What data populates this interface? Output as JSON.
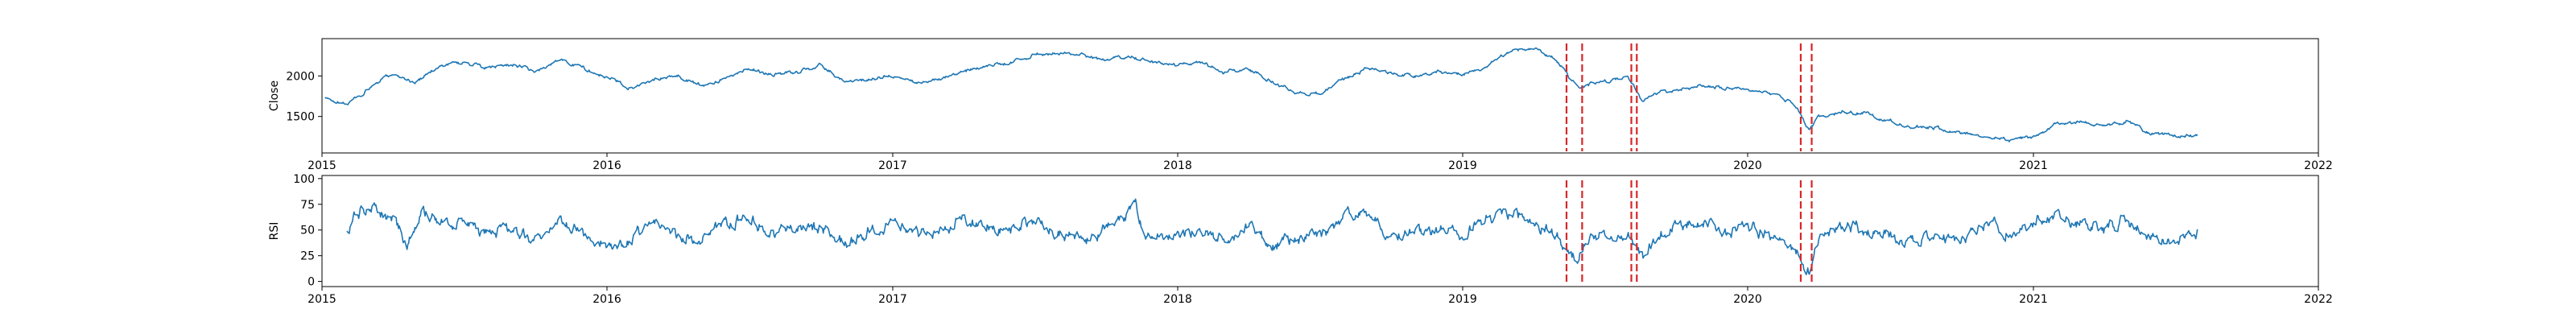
{
  "colors": {
    "line": "#1f77b4",
    "event_line": "#d62728",
    "axes": "#000000"
  },
  "chart_data": [
    {
      "type": "line",
      "ylabel": "Close",
      "xlim": [
        "2015-01-01",
        "2022-01-01"
      ],
      "ylim": [
        1050,
        2460
      ],
      "x_tick_labels": [
        "2015",
        "2016",
        "2017",
        "2018",
        "2019",
        "2020",
        "2021",
        "2022"
      ],
      "y_ticks": [
        1500,
        2000
      ],
      "y_tick_labels": [
        "1500",
        "2000"
      ],
      "grid": false,
      "x_range": [
        "2015-01-05",
        "2021-07-30"
      ],
      "anchors": [
        [
          "2015-01-05",
          1720
        ],
        [
          "2015-02-01",
          1650
        ],
        [
          "2015-03-01",
          1830
        ],
        [
          "2015-04-01",
          2030
        ],
        [
          "2015-05-01",
          1920
        ],
        [
          "2015-06-01",
          2130
        ],
        [
          "2015-07-01",
          2170
        ],
        [
          "2015-08-01",
          2090
        ],
        [
          "2015-09-01",
          2150
        ],
        [
          "2015-10-01",
          2040
        ],
        [
          "2015-11-01",
          2200
        ],
        [
          "2015-12-01",
          2100
        ],
        [
          "2016-01-01",
          1980
        ],
        [
          "2016-02-01",
          1860
        ],
        [
          "2016-03-01",
          1960
        ],
        [
          "2016-04-01",
          2000
        ],
        [
          "2016-05-01",
          1880
        ],
        [
          "2016-06-01",
          1960
        ],
        [
          "2016-07-01",
          2100
        ],
        [
          "2016-08-01",
          2010
        ],
        [
          "2016-09-01",
          2050
        ],
        [
          "2016-10-01",
          2130
        ],
        [
          "2016-11-01",
          1930
        ],
        [
          "2016-12-01",
          1960
        ],
        [
          "2017-01-01",
          2000
        ],
        [
          "2017-02-01",
          1900
        ],
        [
          "2017-03-01",
          1980
        ],
        [
          "2017-04-01",
          2050
        ],
        [
          "2017-05-01",
          2120
        ],
        [
          "2017-06-01",
          2160
        ],
        [
          "2017-07-01",
          2260
        ],
        [
          "2017-08-01",
          2300
        ],
        [
          "2017-09-01",
          2250
        ],
        [
          "2017-10-01",
          2190
        ],
        [
          "2017-11-01",
          2250
        ],
        [
          "2017-12-01",
          2160
        ],
        [
          "2018-01-01",
          2120
        ],
        [
          "2018-02-01",
          2170
        ],
        [
          "2018-03-01",
          2040
        ],
        [
          "2018-04-01",
          2090
        ],
        [
          "2018-05-01",
          1930
        ],
        [
          "2018-06-01",
          1800
        ],
        [
          "2018-07-01",
          1780
        ],
        [
          "2018-08-01",
          1950
        ],
        [
          "2018-09-01",
          2100
        ],
        [
          "2018-10-01",
          2020
        ],
        [
          "2018-11-01",
          2000
        ],
        [
          "2018-12-01",
          2050
        ],
        [
          "2019-01-01",
          2020
        ],
        [
          "2019-02-01",
          2120
        ],
        [
          "2019-03-01",
          2300
        ],
        [
          "2019-04-01",
          2350
        ],
        [
          "2019-05-01",
          2200
        ],
        [
          "2019-05-20",
          1950
        ],
        [
          "2019-06-01",
          1870
        ],
        [
          "2019-07-01",
          1940
        ],
        [
          "2019-08-01",
          1960
        ],
        [
          "2019-08-20",
          1680
        ],
        [
          "2019-09-01",
          1780
        ],
        [
          "2019-10-01",
          1820
        ],
        [
          "2019-11-01",
          1870
        ],
        [
          "2019-12-01",
          1850
        ],
        [
          "2020-01-01",
          1820
        ],
        [
          "2020-02-01",
          1780
        ],
        [
          "2020-03-01",
          1650
        ],
        [
          "2020-03-20",
          1310
        ],
        [
          "2020-04-01",
          1490
        ],
        [
          "2020-05-01",
          1560
        ],
        [
          "2020-06-01",
          1540
        ],
        [
          "2020-07-01",
          1440
        ],
        [
          "2020-08-01",
          1370
        ],
        [
          "2020-09-01",
          1350
        ],
        [
          "2020-10-01",
          1300
        ],
        [
          "2020-11-01",
          1270
        ],
        [
          "2020-12-01",
          1210
        ],
        [
          "2021-01-01",
          1250
        ],
        [
          "2021-02-01",
          1420
        ],
        [
          "2021-03-01",
          1440
        ],
        [
          "2021-04-01",
          1370
        ],
        [
          "2021-05-01",
          1440
        ],
        [
          "2021-06-01",
          1280
        ],
        [
          "2021-07-01",
          1260
        ],
        [
          "2021-07-30",
          1270
        ]
      ]
    },
    {
      "type": "line",
      "ylabel": "RSI",
      "xlim": [
        "2015-01-01",
        "2022-01-01"
      ],
      "ylim": [
        -5,
        103
      ],
      "x_tick_labels": [
        "2015",
        "2016",
        "2017",
        "2018",
        "2019",
        "2020",
        "2021",
        "2022"
      ],
      "y_ticks": [
        0,
        25,
        50,
        75,
        100
      ],
      "y_tick_labels": [
        "0",
        "25",
        "50",
        "75",
        "100"
      ],
      "grid": false,
      "x_range": [
        "2015-02-01",
        "2021-07-30"
      ],
      "anchors": [
        [
          "2015-02-01",
          52
        ],
        [
          "2015-02-20",
          68
        ],
        [
          "2015-03-10",
          72
        ],
        [
          "2015-04-01",
          60
        ],
        [
          "2015-04-20",
          35
        ],
        [
          "2015-05-10",
          70
        ],
        [
          "2015-06-01",
          55
        ],
        [
          "2015-07-01",
          60
        ],
        [
          "2015-08-01",
          45
        ],
        [
          "2015-09-01",
          52
        ],
        [
          "2015-10-01",
          42
        ],
        [
          "2015-11-01",
          58
        ],
        [
          "2015-12-01",
          45
        ],
        [
          "2016-01-01",
          38
        ],
        [
          "2016-02-01",
          42
        ],
        [
          "2016-03-01",
          55
        ],
        [
          "2016-04-01",
          48
        ],
        [
          "2016-05-01",
          40
        ],
        [
          "2016-06-01",
          55
        ],
        [
          "2016-07-01",
          62
        ],
        [
          "2016-08-01",
          45
        ],
        [
          "2016-09-01",
          55
        ],
        [
          "2016-10-01",
          50
        ],
        [
          "2016-11-01",
          35
        ],
        [
          "2016-12-01",
          48
        ],
        [
          "2017-01-01",
          55
        ],
        [
          "2017-02-01",
          45
        ],
        [
          "2017-03-01",
          50
        ],
        [
          "2017-04-01",
          60
        ],
        [
          "2017-05-01",
          55
        ],
        [
          "2017-06-01",
          50
        ],
        [
          "2017-07-01",
          60
        ],
        [
          "2017-08-01",
          48
        ],
        [
          "2017-09-01",
          40
        ],
        [
          "2017-10-01",
          50
        ],
        [
          "2017-10-25",
          62
        ],
        [
          "2017-11-08",
          80
        ],
        [
          "2017-11-20",
          40
        ],
        [
          "2017-12-10",
          45
        ],
        [
          "2018-01-01",
          52
        ],
        [
          "2018-02-01",
          48
        ],
        [
          "2018-03-01",
          42
        ],
        [
          "2018-04-01",
          55
        ],
        [
          "2018-05-01",
          35
        ],
        [
          "2018-06-01",
          40
        ],
        [
          "2018-07-01",
          45
        ],
        [
          "2018-08-01",
          60
        ],
        [
          "2018-09-01",
          65
        ],
        [
          "2018-10-01",
          45
        ],
        [
          "2018-11-01",
          48
        ],
        [
          "2018-12-01",
          50
        ],
        [
          "2019-01-01",
          45
        ],
        [
          "2019-02-01",
          60
        ],
        [
          "2019-03-01",
          65
        ],
        [
          "2019-04-01",
          60
        ],
        [
          "2019-05-01",
          45
        ],
        [
          "2019-05-25",
          22
        ],
        [
          "2019-06-10",
          38
        ],
        [
          "2019-07-01",
          50
        ],
        [
          "2019-08-01",
          45
        ],
        [
          "2019-08-20",
          25
        ],
        [
          "2019-09-01",
          42
        ],
        [
          "2019-10-01",
          55
        ],
        [
          "2019-11-01",
          58
        ],
        [
          "2019-12-01",
          48
        ],
        [
          "2020-01-01",
          55
        ],
        [
          "2020-02-01",
          42
        ],
        [
          "2020-03-01",
          30
        ],
        [
          "2020-03-20",
          10
        ],
        [
          "2020-04-01",
          40
        ],
        [
          "2020-05-01",
          55
        ],
        [
          "2020-06-01",
          50
        ],
        [
          "2020-07-01",
          45
        ],
        [
          "2020-08-01",
          40
        ],
        [
          "2020-09-01",
          45
        ],
        [
          "2020-10-01",
          42
        ],
        [
          "2020-11-01",
          55
        ],
        [
          "2020-12-01",
          50
        ],
        [
          "2021-01-01",
          58
        ],
        [
          "2021-02-01",
          68
        ],
        [
          "2021-03-01",
          55
        ],
        [
          "2021-04-01",
          50
        ],
        [
          "2021-05-01",
          60
        ],
        [
          "2021-06-01",
          40
        ],
        [
          "2021-07-01",
          42
        ],
        [
          "2021-07-30",
          48
        ]
      ]
    }
  ],
  "event_lines": [
    "2019-05-14",
    "2019-06-03",
    "2019-08-05",
    "2019-08-12",
    "2020-03-09",
    "2020-03-23"
  ]
}
